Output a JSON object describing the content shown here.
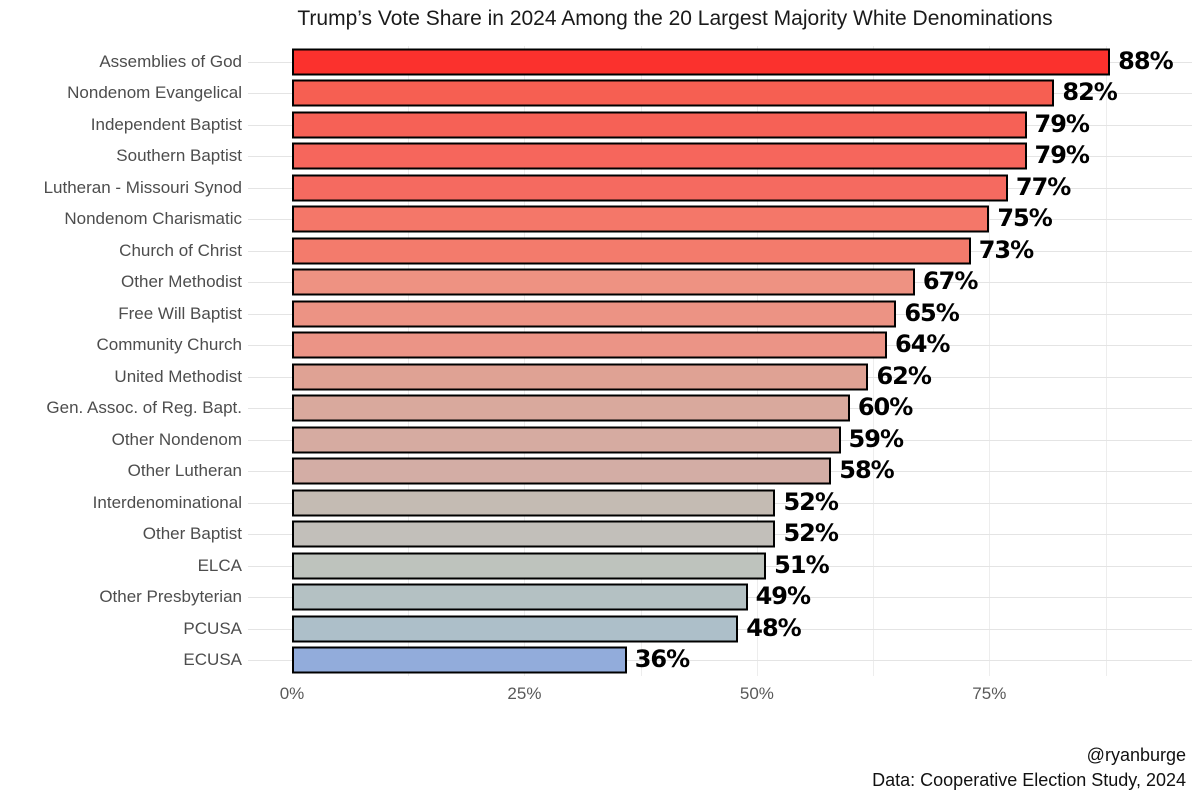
{
  "title": "Trump’s Vote Share in 2024 Among the 20 Largest Majority White Denominations",
  "chart_data": {
    "type": "bar",
    "orientation": "horizontal",
    "title": "Trump’s Vote Share in 2024 Among the 20 Largest Majority White Denominations",
    "xlabel": "",
    "ylabel": "",
    "categories": [
      "Assemblies of God",
      "Nondenom Evangelical",
      "Independent Baptist",
      "Southern Baptist",
      "Lutheran - Missouri Synod",
      "Nondenom Charismatic",
      "Church of Christ",
      "Other Methodist",
      "Free Will Baptist",
      "Community Church",
      "United Methodist",
      "Gen. Assoc. of Reg. Bapt.",
      "Other Nondenom",
      "Other Lutheran",
      "Interdenominational",
      "Other Baptist",
      "ELCA",
      "Other Presbyterian",
      "PCUSA",
      "ECUSA"
    ],
    "values": [
      88,
      82,
      79,
      79,
      77,
      75,
      73,
      67,
      65,
      64,
      62,
      60,
      59,
      58,
      52,
      52,
      51,
      49,
      48,
      36
    ],
    "value_labels": [
      "88%",
      "82%",
      "79%",
      "79%",
      "77%",
      "75%",
      "73%",
      "67%",
      "65%",
      "64%",
      "62%",
      "60%",
      "59%",
      "58%",
      "52%",
      "52%",
      "51%",
      "49%",
      "48%",
      "36%"
    ],
    "bar_colors": [
      "#fb312d",
      "#f65f52",
      "#f66156",
      "#f6665c",
      "#f56a60",
      "#f47769",
      "#f37b6c",
      "#ee9282",
      "#ec9384",
      "#eb9486",
      "#dfa294",
      "#d9a99d",
      "#d6aba1",
      "#d3ada5",
      "#c4bbb3",
      "#c2bfba",
      "#bec3bd",
      "#b4c1c3",
      "#adbfc9",
      "#92acdb"
    ],
    "bar_border_color": "#000000",
    "xlim": [
      0,
      96.8
    ],
    "x_ticks": [
      {
        "label": "0%",
        "value": 0
      },
      {
        "label": "25%",
        "value": 25
      },
      {
        "label": "50%",
        "value": 50
      },
      {
        "label": "75%",
        "value": 75
      }
    ],
    "vertical_gridline_values": [
      12.5,
      25,
      37.5,
      50,
      62.5,
      75,
      87.5
    ],
    "grid": "on",
    "legend_position": "none"
  },
  "footer": {
    "credit": "@ryanburge",
    "source": "Data: Cooperative Election Study, 2024"
  },
  "colors": {
    "background": "#ffffff",
    "horizontal_grid": "#e4e4e4",
    "vertical_grid": "#ededed",
    "category_label": "#4d4d4d",
    "axis_tick_label": "#595959",
    "title_text": "#1a1a1a",
    "value_label": "#000000"
  }
}
